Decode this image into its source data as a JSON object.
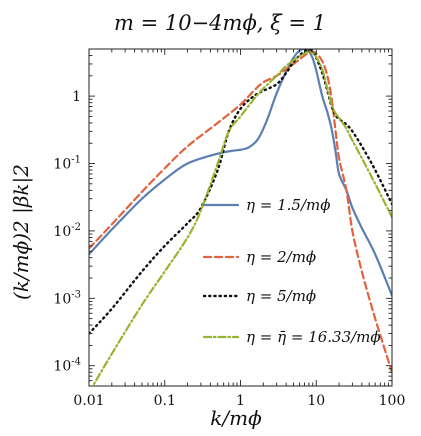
{
  "chart_data": {
    "type": "line",
    "title": "m = 10−4mϕ, ξ = 1",
    "xlabel": "k/mϕ",
    "ylabel": "(k/mϕ)2 |βk|2",
    "xscale": "log",
    "yscale": "log",
    "xlim": [
      0.01,
      100
    ],
    "ylim": [
      5e-05,
      5
    ],
    "x_ticks": [
      {
        "value": 0.01,
        "label": "0.01"
      },
      {
        "value": 0.1,
        "label": "0.1"
      },
      {
        "value": 1,
        "label": "1"
      },
      {
        "value": 10,
        "label": "10"
      },
      {
        "value": 100,
        "label": "100"
      }
    ],
    "y_ticks": [
      {
        "value": 0.0001,
        "base": "10",
        "exp": "-4"
      },
      {
        "value": 0.001,
        "base": "10",
        "exp": "-3"
      },
      {
        "value": 0.01,
        "base": "10",
        "exp": "-2"
      },
      {
        "value": 0.1,
        "base": "10",
        "exp": "-1"
      },
      {
        "value": 1,
        "base": "1",
        "exp": ""
      }
    ],
    "legend_position": "right",
    "series": [
      {
        "name": "η = 1.5/mϕ",
        "color": "#5b7fb3",
        "dash": "solid",
        "points": [
          [
            0.01,
            0.0045
          ],
          [
            0.02,
            0.0105
          ],
          [
            0.05,
            0.03
          ],
          [
            0.1,
            0.058
          ],
          [
            0.2,
            0.1
          ],
          [
            0.5,
            0.14
          ],
          [
            0.8,
            0.155
          ],
          [
            1.0,
            0.16
          ],
          [
            1.3,
            0.175
          ],
          [
            1.7,
            0.23
          ],
          [
            2.2,
            0.42
          ],
          [
            3.0,
            1.1
          ],
          [
            4.0,
            2.3
          ],
          [
            5.0,
            3.7
          ],
          [
            6.0,
            4.7
          ],
          [
            7.0,
            5.0
          ],
          [
            8.0,
            4.6
          ],
          [
            9.0,
            3.6
          ],
          [
            10.0,
            2.4
          ],
          [
            12.0,
            1.0
          ],
          [
            14.0,
            0.58
          ],
          [
            16.0,
            0.32
          ],
          [
            18.0,
            0.15
          ],
          [
            20.0,
            0.07
          ],
          [
            25.0,
            0.04
          ],
          [
            30.0,
            0.022
          ],
          [
            40.0,
            0.011
          ],
          [
            60.0,
            0.0045
          ],
          [
            100.0,
            0.0011
          ]
        ]
      },
      {
        "name": "η = 2/mϕ",
        "color": "#e0623e",
        "dash": "dashed",
        "points": [
          [
            0.01,
            0.0055
          ],
          [
            0.02,
            0.0125
          ],
          [
            0.05,
            0.038
          ],
          [
            0.1,
            0.085
          ],
          [
            0.2,
            0.18
          ],
          [
            0.5,
            0.4
          ],
          [
            1.0,
            0.75
          ],
          [
            1.5,
            1.2
          ],
          [
            2.0,
            1.6
          ],
          [
            3.0,
            2.0
          ],
          [
            4.0,
            2.5
          ],
          [
            5.0,
            3.0
          ],
          [
            6.0,
            3.5
          ],
          [
            7.0,
            4.0
          ],
          [
            8.0,
            4.4
          ],
          [
            9.0,
            4.5
          ],
          [
            10.0,
            4.3
          ],
          [
            12.0,
            3.3
          ],
          [
            14.0,
            2.0
          ],
          [
            16.0,
            0.9
          ],
          [
            18.0,
            0.3
          ],
          [
            20.0,
            0.12
          ],
          [
            25.0,
            0.04
          ],
          [
            30.0,
            0.01
          ],
          [
            40.0,
            0.0025
          ],
          [
            60.0,
            0.0005
          ],
          [
            100.0,
            8e-05
          ]
        ]
      },
      {
        "name": "η = 5/mϕ",
        "color": "#111111",
        "dash": "dotted",
        "points": [
          [
            0.01,
            0.0003
          ],
          [
            0.02,
            0.0007
          ],
          [
            0.05,
            0.0025
          ],
          [
            0.1,
            0.006
          ],
          [
            0.2,
            0.013
          ],
          [
            0.3,
            0.022
          ],
          [
            0.5,
            0.08
          ],
          [
            0.7,
            0.3
          ],
          [
            1.0,
            0.65
          ],
          [
            1.5,
            1.0
          ],
          [
            2.0,
            1.2
          ],
          [
            3.0,
            1.5
          ],
          [
            4.0,
            2.2
          ],
          [
            5.0,
            3.2
          ],
          [
            6.0,
            4.0
          ],
          [
            7.0,
            4.6
          ],
          [
            8.0,
            4.9
          ],
          [
            9.0,
            4.5
          ],
          [
            10.0,
            3.7
          ],
          [
            12.0,
            2.2
          ],
          [
            14.0,
            1.2
          ],
          [
            16.0,
            0.7
          ],
          [
            18.0,
            0.52
          ],
          [
            20.0,
            0.46
          ],
          [
            25.0,
            0.38
          ],
          [
            30.0,
            0.3
          ],
          [
            40.0,
            0.18
          ],
          [
            60.0,
            0.08
          ],
          [
            100.0,
            0.025
          ]
        ]
      },
      {
        "name": "η = η̄ = 16.33/mϕ",
        "color": "#96b52e",
        "dash": "dashdot",
        "points": [
          [
            0.01,
            4e-05
          ],
          [
            0.02,
            0.00015
          ],
          [
            0.05,
            0.0008
          ],
          [
            0.1,
            0.0025
          ],
          [
            0.2,
            0.008
          ],
          [
            0.3,
            0.02
          ],
          [
            0.5,
            0.1
          ],
          [
            0.7,
            0.3
          ],
          [
            1.0,
            0.5
          ],
          [
            1.5,
            0.9
          ],
          [
            2.0,
            1.3
          ],
          [
            3.0,
            2.0
          ],
          [
            4.0,
            2.8
          ],
          [
            5.0,
            3.4
          ],
          [
            6.0,
            3.9
          ],
          [
            7.0,
            4.3
          ],
          [
            8.0,
            4.6
          ],
          [
            9.0,
            4.4
          ],
          [
            10.0,
            3.8
          ],
          [
            12.0,
            2.5
          ],
          [
            14.0,
            1.3
          ],
          [
            16.0,
            0.75
          ],
          [
            18.0,
            0.55
          ],
          [
            20.0,
            0.48
          ],
          [
            25.0,
            0.33
          ],
          [
            30.0,
            0.22
          ],
          [
            40.0,
            0.12
          ],
          [
            60.0,
            0.05
          ],
          [
            100.0,
            0.016
          ]
        ]
      }
    ]
  }
}
